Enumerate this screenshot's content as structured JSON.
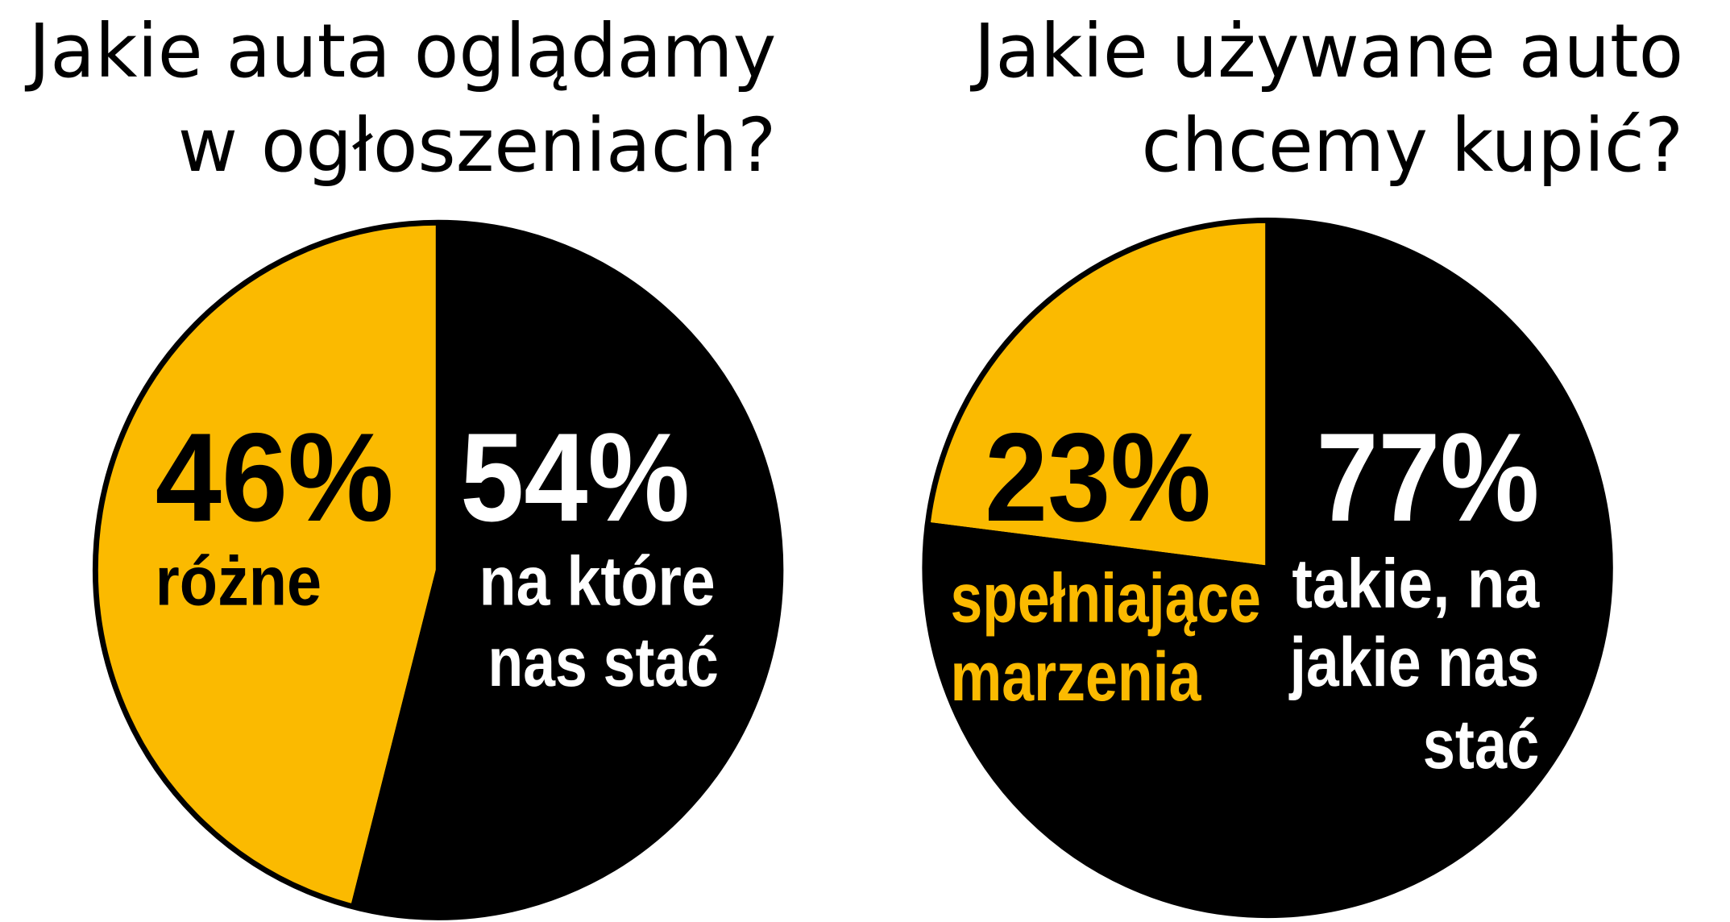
{
  "chart_data": [
    {
      "type": "pie",
      "title": [
        "Jakie auta oglądamy",
        "w ogłoszeniach?"
      ],
      "slices": [
        {
          "label": [
            "różne"
          ],
          "value": 46,
          "display": "46%",
          "color": "#FBBA00",
          "text_color": "#000000"
        },
        {
          "label": [
            "na które",
            "nas stać"
          ],
          "value": 54,
          "display": "54%",
          "color": "#000000",
          "text_color": "#FFFFFF"
        }
      ]
    },
    {
      "type": "pie",
      "title": [
        "Jakie używane auto",
        "chcemy kupić?"
      ],
      "slices": [
        {
          "label": [
            "spełniające",
            "marzenia"
          ],
          "value": 23,
          "display": "23%",
          "color": "#FBBA00",
          "text_color": "#FBBA00",
          "value_color": "#000000"
        },
        {
          "label": [
            "takie, na",
            "jakie nas",
            "stać"
          ],
          "value": 77,
          "display": "77%",
          "color": "#000000",
          "text_color": "#FFFFFF"
        }
      ]
    }
  ]
}
